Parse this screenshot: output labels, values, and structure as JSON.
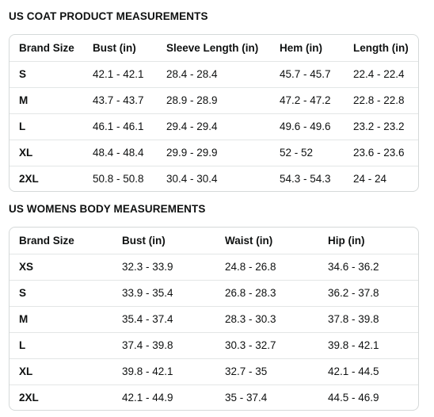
{
  "coat": {
    "title": "US COAT PRODUCT MEASUREMENTS",
    "headers": [
      "Brand Size",
      "Bust (in)",
      "Sleeve Length (in)",
      "Hem (in)",
      "Length (in)"
    ],
    "rows": [
      [
        "S",
        "42.1 - 42.1",
        "28.4 - 28.4",
        "45.7 - 45.7",
        "22.4 - 22.4"
      ],
      [
        "M",
        "43.7 - 43.7",
        "28.9 - 28.9",
        "47.2 - 47.2",
        "22.8 - 22.8"
      ],
      [
        "L",
        "46.1 - 46.1",
        "29.4 - 29.4",
        "49.6 - 49.6",
        "23.2 - 23.2"
      ],
      [
        "XL",
        "48.4 - 48.4",
        "29.9 - 29.9",
        "52 - 52",
        "23.6 - 23.6"
      ],
      [
        "2XL",
        "50.8 - 50.8",
        "30.4 - 30.4",
        "54.3 - 54.3",
        "24 - 24"
      ]
    ]
  },
  "body": {
    "title": "US WOMENS BODY MEASUREMENTS",
    "headers": [
      "Brand Size",
      "Bust (in)",
      "Waist (in)",
      "Hip (in)"
    ],
    "rows": [
      [
        "XS",
        "32.3 - 33.9",
        "24.8 - 26.8",
        "34.6 - 36.2"
      ],
      [
        "S",
        "33.9 - 35.4",
        "26.8 - 28.3",
        "36.2 - 37.8"
      ],
      [
        "M",
        "35.4 - 37.4",
        "28.3 - 30.3",
        "37.8 - 39.8"
      ],
      [
        "L",
        "37.4 - 39.8",
        "30.3 - 32.7",
        "39.8 - 42.1"
      ],
      [
        "XL",
        "39.8 - 42.1",
        "32.7 - 35",
        "42.1 - 44.5"
      ],
      [
        "2XL",
        "42.1 - 44.9",
        "35 - 37.4",
        "44.5 - 46.9"
      ]
    ]
  }
}
